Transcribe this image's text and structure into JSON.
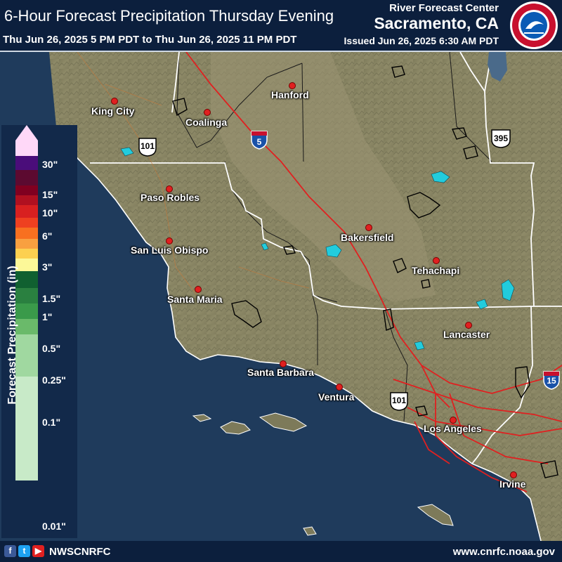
{
  "header": {
    "title": "6-Hour Forecast Precipitation Thursday Evening",
    "subtitle": "Thu Jun 26, 2025 5 PM PDT to Thu Jun 26, 2025 11 PM PDT",
    "rfc": "River Forecast Center",
    "location": "Sacramento, CA",
    "issued": "Issued Jun 26, 2025 6:30 AM PDT"
  },
  "logo": {
    "text": "NATIONAL WEATHER SERVICE",
    "icon": "nws-logo-icon"
  },
  "cities": {
    "king_city": "King City",
    "coalinga": "Coalinga",
    "hanford": "Hanford",
    "paso_robles": "Paso Robles",
    "san_luis_obispo": "San Luis Obispo",
    "santa_maria": "Santa Maria",
    "bakersfield": "Bakersfield",
    "tehachapi": "Tehachapi",
    "lancaster": "Lancaster",
    "santa_barbara": "Santa Barbara",
    "ventura": "Ventura",
    "los_angeles": "Los Angeles",
    "irvine": "Irvine"
  },
  "highways": {
    "i5": "5",
    "us101_north": "101",
    "us101_south": "101",
    "us395": "395",
    "i15": "15"
  },
  "legend": {
    "title": "Forecast Precipitation (in)",
    "labels": [
      "30\"",
      "15\"",
      "10\"",
      "6\"",
      "3\"",
      "1.5\"",
      "1\"",
      "0.5\"",
      "0.25\"",
      "0.1\"",
      "0.01\""
    ],
    "colors": [
      "#ffd8f8",
      "#4a0d7a",
      "#5c0a30",
      "#800020",
      "#b01020",
      "#d82020",
      "#ee4020",
      "#f87020",
      "#f8a040",
      "#fcd050",
      "#fcf898",
      "#106030",
      "#2a8040",
      "#3a9a4a",
      "#6aba6a",
      "#a0d8a0",
      "#c8eac8"
    ]
  },
  "footer": {
    "social_icons": [
      "facebook-icon",
      "twitter-icon",
      "youtube-icon"
    ],
    "handle": "NWSCNRFC",
    "url": "www.cnrfc.noaa.gov"
  },
  "colors": {
    "header_bg": "#0c1f3d",
    "land": "#8a8a6a",
    "ocean": "#1e3a5a",
    "water": "#22ccdd",
    "highway": "#e02020",
    "city_dot": "#e02020"
  }
}
